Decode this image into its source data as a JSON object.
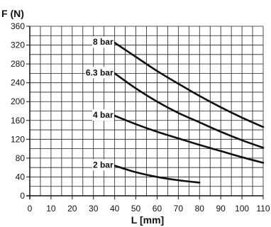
{
  "chart_data": {
    "type": "line",
    "ylabel": "F (N)",
    "xlabel": "L [mm]",
    "xlim": [
      0,
      110
    ],
    "ylim": [
      0,
      360
    ],
    "xticks": [
      0,
      10,
      20,
      30,
      40,
      50,
      60,
      70,
      80,
      90,
      100,
      110
    ],
    "yticks": [
      0,
      40,
      80,
      120,
      160,
      200,
      240,
      280,
      320,
      360
    ],
    "grid": true,
    "series": [
      {
        "name": "8 bar",
        "x": [
          40,
          50,
          60,
          70,
          80,
          90,
          100,
          110
        ],
        "y": [
          325,
          295,
          265,
          238,
          212,
          188,
          166,
          146
        ]
      },
      {
        "name": "6.3 bar",
        "x": [
          40,
          50,
          60,
          70,
          80,
          90,
          100,
          110
        ],
        "y": [
          260,
          228,
          200,
          176,
          156,
          136,
          118,
          102
        ]
      },
      {
        "name": "4 bar",
        "x": [
          40,
          50,
          60,
          70,
          80,
          90,
          100,
          110
        ],
        "y": [
          170,
          152,
          136,
          122,
          108,
          95,
          82,
          70
        ]
      },
      {
        "name": "2 bar",
        "x": [
          40,
          50,
          60,
          70,
          80
        ],
        "y": [
          64,
          50,
          40,
          33,
          28
        ]
      }
    ]
  }
}
